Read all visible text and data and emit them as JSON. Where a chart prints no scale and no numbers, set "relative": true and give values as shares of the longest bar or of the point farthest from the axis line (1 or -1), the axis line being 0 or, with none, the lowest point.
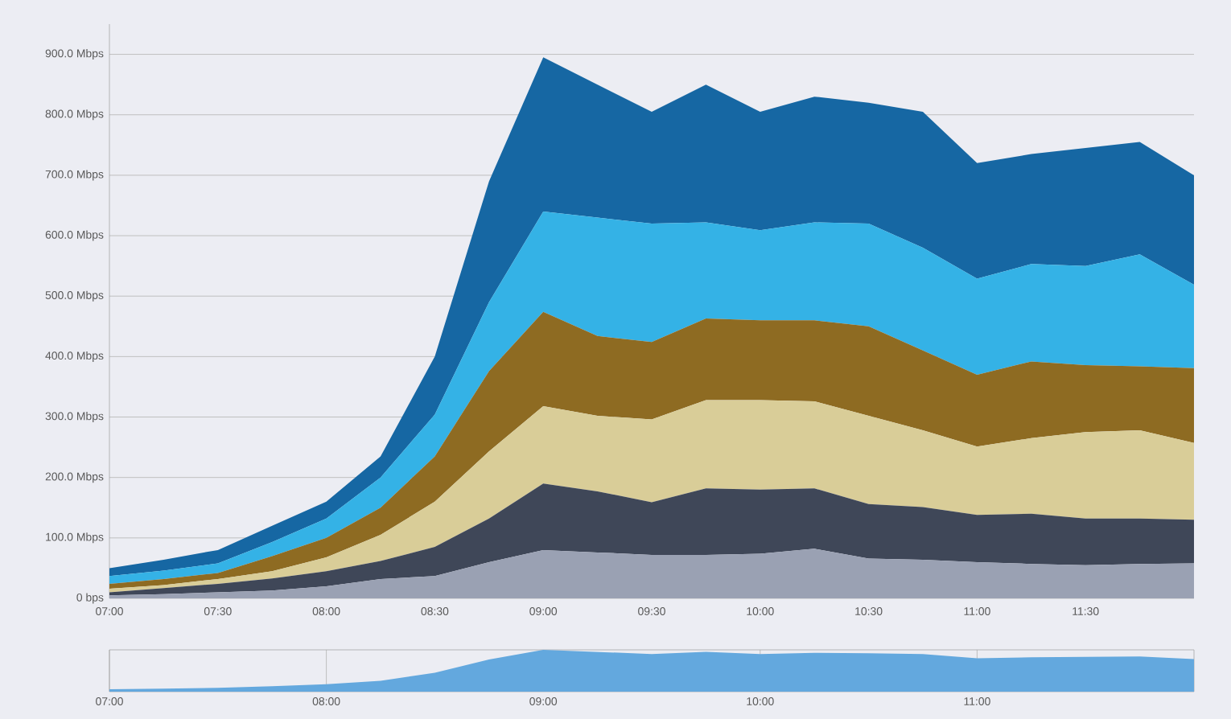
{
  "chart_data": [
    {
      "type": "area",
      "stacked": true,
      "grid": "y",
      "x": [
        7,
        7.25,
        7.5,
        7.75,
        8,
        8.25,
        8.5,
        8.75,
        9,
        9.25,
        9.5,
        9.75,
        10,
        10.25,
        10.5,
        10.75,
        11,
        11.25,
        11.5,
        11.75,
        12
      ],
      "xlim": [
        7,
        12
      ],
      "ylim": [
        0,
        950
      ],
      "xticks": [
        {
          "value": 7,
          "label": "07:00"
        },
        {
          "value": 7.5,
          "label": "07:30"
        },
        {
          "value": 8,
          "label": "08:00"
        },
        {
          "value": 8.5,
          "label": "08:30"
        },
        {
          "value": 9,
          "label": "09:00"
        },
        {
          "value": 9.5,
          "label": "09:30"
        },
        {
          "value": 10,
          "label": "10:00"
        },
        {
          "value": 10.5,
          "label": "10:30"
        },
        {
          "value": 11,
          "label": "11:00"
        },
        {
          "value": 11.5,
          "label": "11:30"
        }
      ],
      "yticks": [
        {
          "value": 0,
          "label": "0 bps"
        },
        {
          "value": 100,
          "label": "100.0 Mbps"
        },
        {
          "value": 200,
          "label": "200.0 Mbps"
        },
        {
          "value": 300,
          "label": "300.0 Mbps"
        },
        {
          "value": 400,
          "label": "400.0 Mbps"
        },
        {
          "value": 500,
          "label": "500.0 Mbps"
        },
        {
          "value": 600,
          "label": "600.0 Mbps"
        },
        {
          "value": 700,
          "label": "700.0 Mbps"
        },
        {
          "value": 800,
          "label": "800.0 Mbps"
        },
        {
          "value": 900,
          "label": "900.0 Mbps"
        }
      ],
      "series": [
        {
          "color": "#9aa1b3",
          "values": [
            5,
            7,
            10,
            13,
            20,
            32,
            37,
            60,
            80,
            76,
            72,
            72,
            74,
            82,
            66,
            64,
            60,
            57,
            55,
            57,
            58
          ]
        },
        {
          "color": "#3f4758",
          "values": [
            5,
            10,
            14,
            20,
            25,
            30,
            48,
            72,
            110,
            101,
            87,
            110,
            106,
            100,
            90,
            87,
            78,
            83,
            77,
            75,
            72
          ]
        },
        {
          "color": "#d9cd98",
          "values": [
            6,
            5,
            8,
            12,
            23,
            43,
            75,
            111,
            128,
            125,
            137,
            146,
            148,
            144,
            146,
            127,
            113,
            125,
            143,
            146,
            127
          ]
        },
        {
          "color": "#8e6b22",
          "values": [
            8,
            10,
            10,
            25,
            32,
            45,
            75,
            133,
            156,
            132,
            128,
            135,
            132,
            134,
            148,
            132,
            119,
            127,
            111,
            106,
            124
          ]
        },
        {
          "color": "#34b2e6",
          "values": [
            13,
            14,
            16,
            23,
            32,
            50,
            69,
            114,
            166,
            196,
            196,
            159,
            149,
            162,
            170,
            170,
            159,
            161,
            164,
            185,
            138
          ]
        },
        {
          "color": "#1667a3",
          "values": [
            13,
            18,
            22,
            27,
            28,
            35,
            96,
            200,
            255,
            220,
            185,
            228,
            196,
            208,
            200,
            225,
            191,
            182,
            195,
            186,
            181
          ]
        }
      ]
    },
    {
      "type": "area",
      "relative": true,
      "tick_labels": "x",
      "grid": "x",
      "color": "#63a8de",
      "x": [
        7,
        7.25,
        7.5,
        7.75,
        8,
        8.25,
        8.5,
        8.75,
        9,
        9.25,
        9.5,
        9.75,
        10,
        10.25,
        10.5,
        10.75,
        11,
        11.25,
        11.5,
        11.75,
        12
      ],
      "xlim": [
        7,
        12
      ],
      "xticks": [
        {
          "value": 7,
          "label": "07:00"
        },
        {
          "value": 8,
          "label": "08:00"
        },
        {
          "value": 9,
          "label": "09:00"
        },
        {
          "value": 10,
          "label": "10:00"
        },
        {
          "value": 11,
          "label": "11:00"
        }
      ],
      "values": [
        0.06,
        0.07,
        0.09,
        0.13,
        0.18,
        0.26,
        0.45,
        0.77,
        1,
        0.95,
        0.9,
        0.95,
        0.9,
        0.93,
        0.92,
        0.9,
        0.8,
        0.82,
        0.83,
        0.84,
        0.78
      ]
    }
  ]
}
